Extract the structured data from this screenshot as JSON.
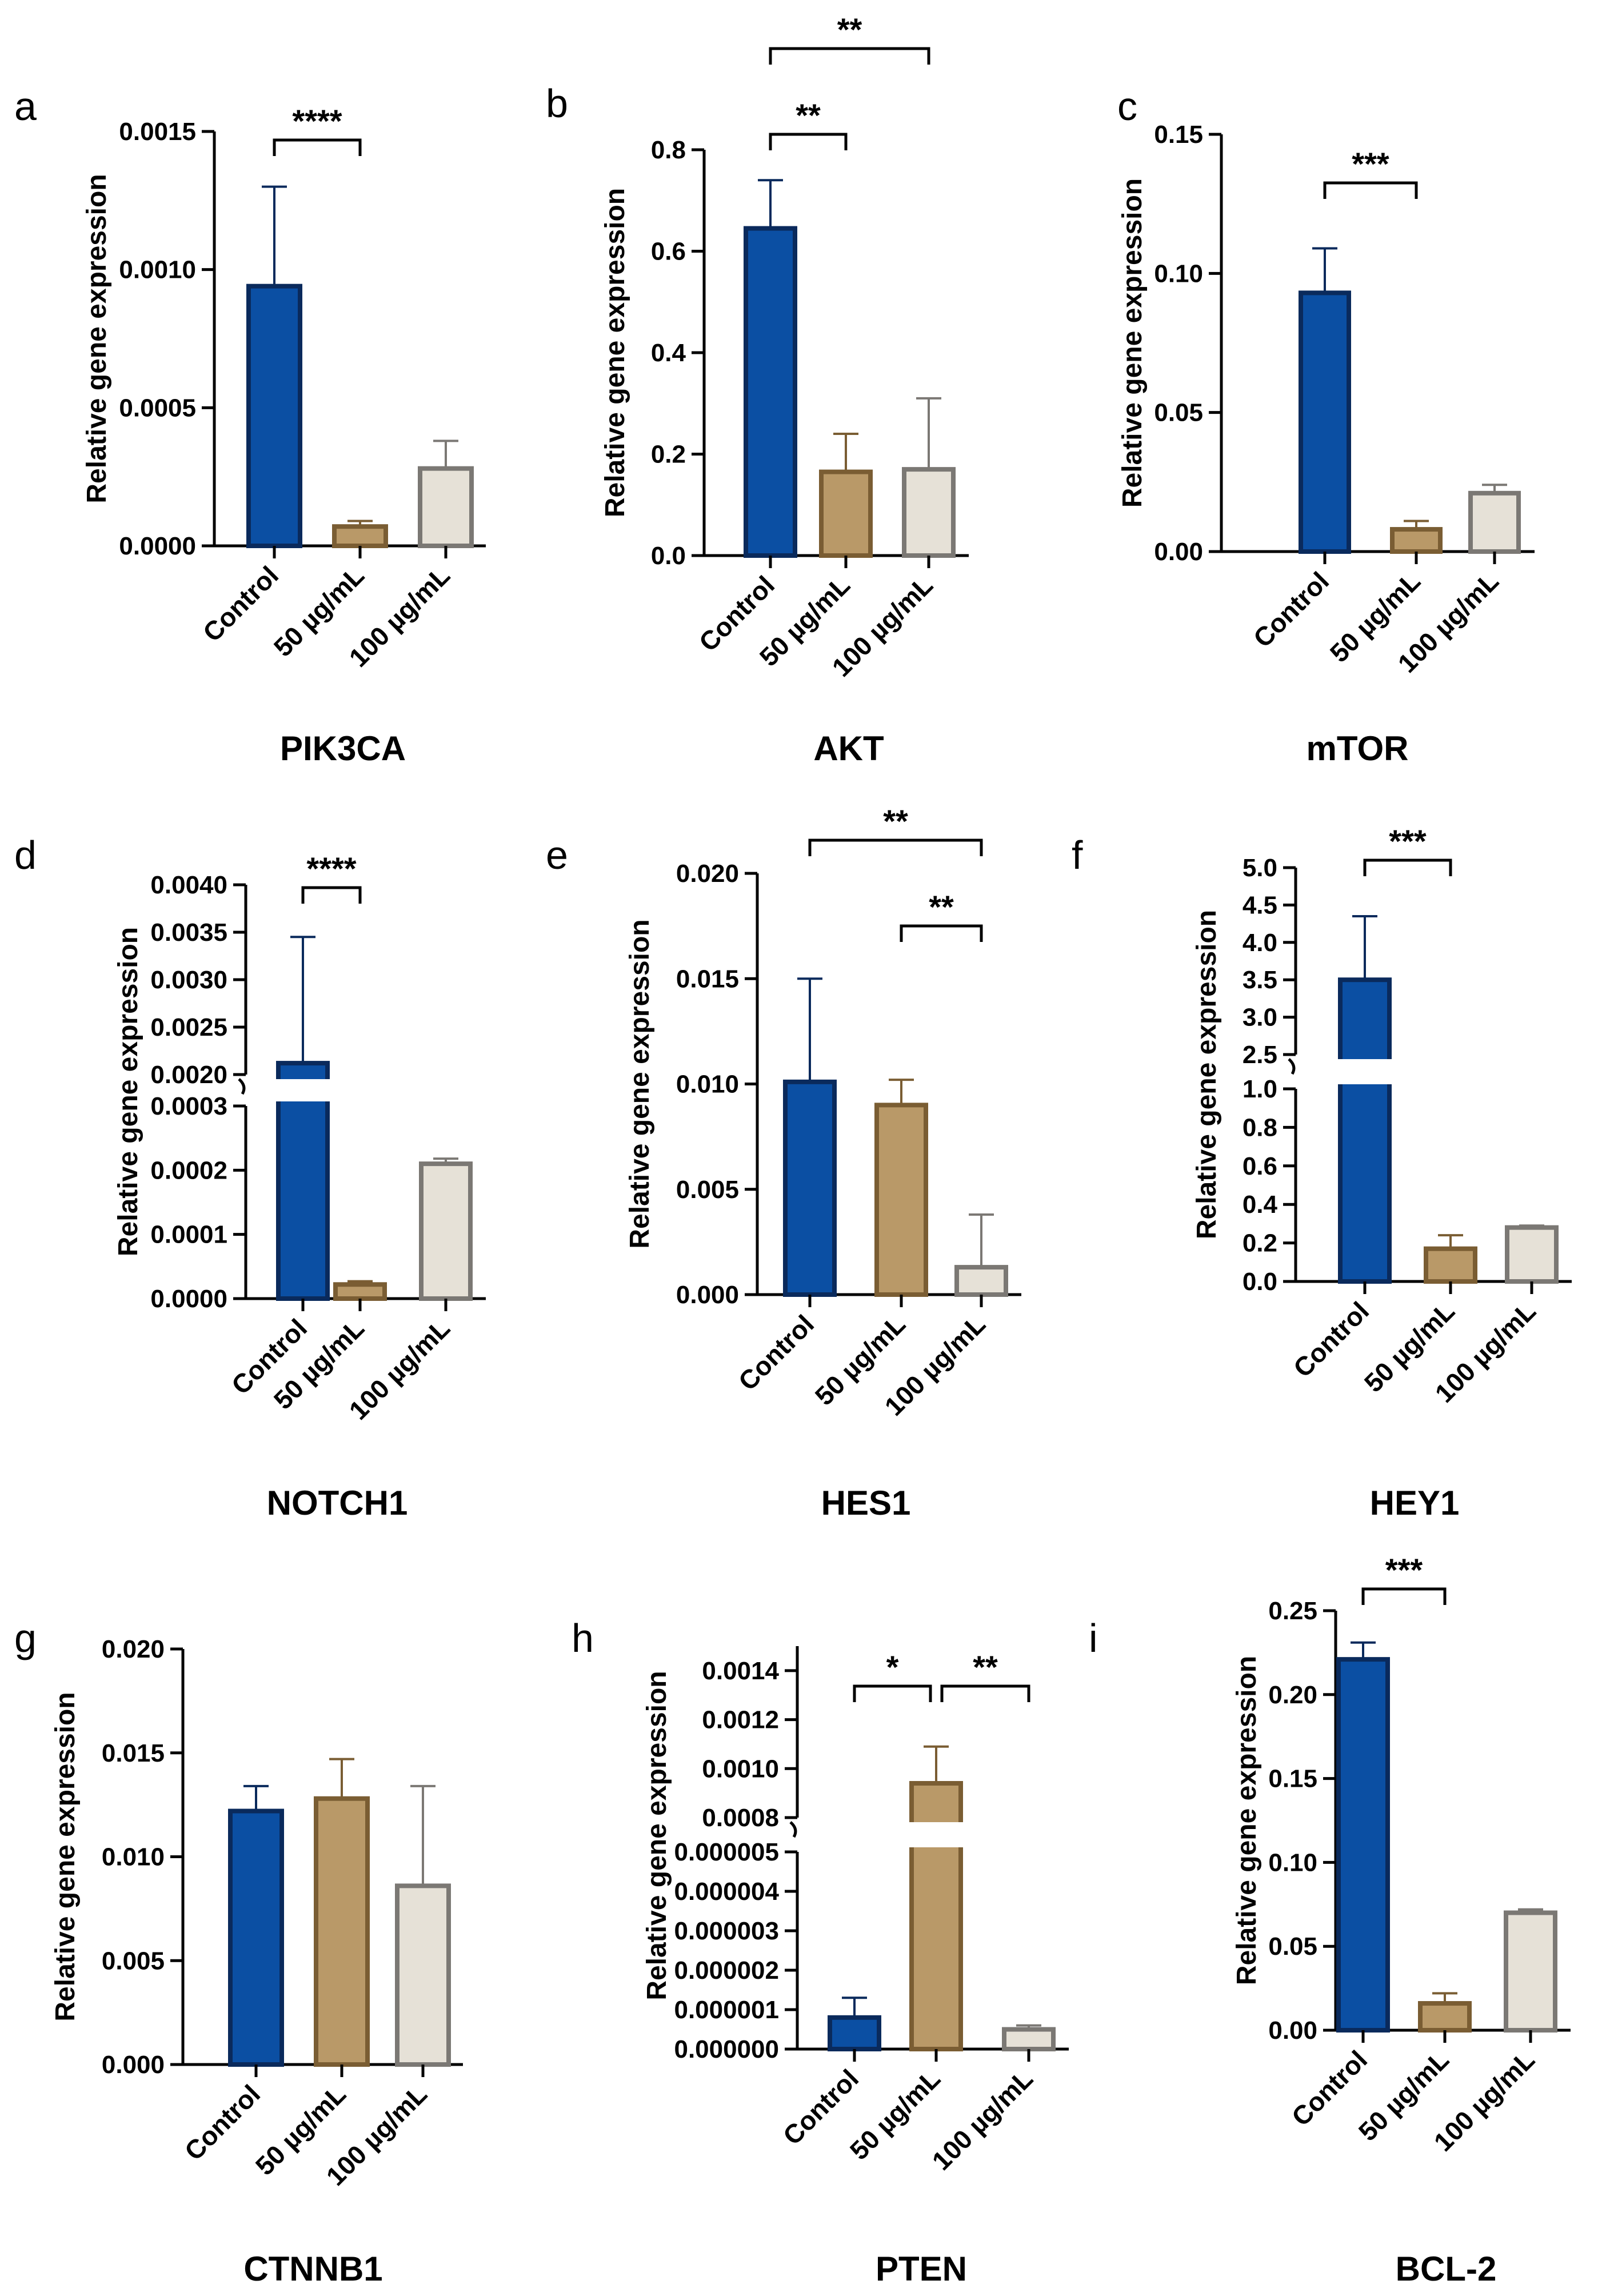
{
  "chart_data": [
    {
      "type": "bar",
      "panel": "a",
      "title": "PIK3CA",
      "ylabel": "Relative gene expression",
      "categories": [
        "Control",
        "50 µg/mL",
        "100 µg/mL"
      ],
      "values": [
        0.00094,
        7e-05,
        0.00028
      ],
      "errors": [
        0.00036,
        2e-05,
        0.0001
      ],
      "ylim": [
        0,
        0.0015
      ],
      "yticks": [
        0,
        0.0005,
        0.001,
        0.0015
      ],
      "ytick_labels": [
        "0.0000",
        "0.0005",
        "0.0010",
        "0.0015"
      ],
      "significance": [
        {
          "from": 0,
          "to": 1,
          "label": "****"
        }
      ]
    },
    {
      "type": "bar",
      "panel": "b",
      "title": "AKT",
      "ylabel": "Relative gene expression",
      "categories": [
        "Control",
        "50 µg/mL",
        "100 µg/mL"
      ],
      "values": [
        0.645,
        0.165,
        0.17
      ],
      "errors": [
        0.095,
        0.075,
        0.14
      ],
      "ylim": [
        0,
        0.8
      ],
      "yticks": [
        0,
        0.2,
        0.4,
        0.6,
        0.8
      ],
      "ytick_labels": [
        "0.0",
        "0.2",
        "0.4",
        "0.6",
        "0.8"
      ],
      "significance": [
        {
          "from": 0,
          "to": 1,
          "label": "**"
        },
        {
          "from": 0,
          "to": 2,
          "label": "**"
        }
      ]
    },
    {
      "type": "bar",
      "panel": "c",
      "title": "mTOR",
      "ylabel": "Relative gene expression",
      "categories": [
        "Control",
        "50 µg/mL",
        "100 µg/mL"
      ],
      "values": [
        0.093,
        0.008,
        0.021
      ],
      "errors": [
        0.016,
        0.003,
        0.003
      ],
      "ylim": [
        0,
        0.15
      ],
      "yticks": [
        0,
        0.05,
        0.1,
        0.15
      ],
      "ytick_labels": [
        "0.00",
        "0.05",
        "0.10",
        "0.15"
      ],
      "significance": [
        {
          "from": 0,
          "to": 1,
          "label": "***"
        }
      ]
    },
    {
      "type": "bar",
      "panel": "d",
      "title": "NOTCH1",
      "ylabel": "Relative gene expression",
      "categories": [
        "Control",
        "50 µg/mL",
        "100 µg/mL"
      ],
      "values": [
        0.00212,
        2.2e-05,
        0.00021
      ],
      "errors": [
        0.00133,
        5e-06,
        8e-06
      ],
      "broken_axis": true,
      "ylim_lower": [
        0,
        0.0003
      ],
      "ylim_upper": [
        0.002,
        0.004
      ],
      "yticks": [
        0,
        0.0001,
        0.0002,
        0.0003,
        0.002,
        0.0025,
        0.003,
        0.0035,
        0.004
      ],
      "ytick_labels": [
        "0.0000",
        "0.0001",
        "0.0002",
        "0.0003",
        "0.0020",
        "0.0025",
        "0.0030",
        "0.0035",
        "0.0040"
      ],
      "significance": [
        {
          "from": 0,
          "to": 1,
          "label": "****"
        }
      ]
    },
    {
      "type": "bar",
      "panel": "e",
      "title": "HES1",
      "ylabel": "Relative gene expression",
      "categories": [
        "Control",
        "50 µg/mL",
        "100 µg/mL"
      ],
      "values": [
        0.0101,
        0.009,
        0.0013
      ],
      "errors": [
        0.0049,
        0.0012,
        0.0025
      ],
      "ylim": [
        0,
        0.02
      ],
      "yticks": [
        0,
        0.005,
        0.01,
        0.015,
        0.02
      ],
      "ytick_labels": [
        "0.000",
        "0.005",
        "0.010",
        "0.015",
        "0.020"
      ],
      "significance": [
        {
          "from": 1,
          "to": 2,
          "label": "**"
        },
        {
          "from": 0,
          "to": 2,
          "label": "**"
        }
      ]
    },
    {
      "type": "bar",
      "panel": "f",
      "title": "HEY1",
      "ylabel": "Relative gene expression",
      "categories": [
        "Control",
        "50 µg/mL",
        "100 µg/mL"
      ],
      "values": [
        3.5,
        0.17,
        0.28
      ],
      "errors": [
        0.85,
        0.07,
        0.01
      ],
      "broken_axis": true,
      "ylim_lower": [
        0,
        1.0
      ],
      "ylim_upper": [
        2.5,
        5.0
      ],
      "yticks": [
        0,
        0.2,
        0.4,
        0.6,
        0.8,
        1.0,
        2.5,
        3.0,
        3.5,
        4.0,
        4.5,
        5.0
      ],
      "ytick_labels": [
        "0.0",
        "0.2",
        "0.4",
        "0.6",
        "0.8",
        "1.0",
        "2.5",
        "3.0",
        "3.5",
        "4.0",
        "4.5",
        "5.0"
      ],
      "significance": [
        {
          "from": 0,
          "to": 1,
          "label": "***"
        }
      ]
    },
    {
      "type": "bar",
      "panel": "g",
      "title": "CTNNB1",
      "ylabel": "Relative gene expression",
      "categories": [
        "Control",
        "50 µg/mL",
        "100 µg/mL"
      ],
      "values": [
        0.0122,
        0.0128,
        0.0086
      ],
      "errors": [
        0.0012,
        0.0019,
        0.0048
      ],
      "ylim": [
        0,
        0.02
      ],
      "yticks": [
        0,
        0.005,
        0.01,
        0.015,
        0.02
      ],
      "ytick_labels": [
        "0.000",
        "0.005",
        "0.010",
        "0.015",
        "0.020"
      ],
      "significance": []
    },
    {
      "type": "bar",
      "panel": "h",
      "title": "PTEN",
      "ylabel": "Relative gene expression",
      "categories": [
        "Control",
        "50 µg/mL",
        "100 µg/mL"
      ],
      "values": [
        8e-07,
        0.00094,
        5e-07
      ],
      "errors": [
        5e-07,
        0.00015,
        1e-07
      ],
      "broken_axis": true,
      "ylim_lower": [
        0,
        5e-06
      ],
      "ylim_upper": [
        0.0008,
        0.0015
      ],
      "yticks": [
        0,
        1e-06,
        2e-06,
        3e-06,
        4e-06,
        5e-06,
        0.0008,
        0.001,
        0.0012,
        0.0014
      ],
      "ytick_labels": [
        "0.000000",
        "0.000001",
        "0.000002",
        "0.000003",
        "0.000004",
        "0.000005",
        "0.0008",
        "0.0010",
        "0.0012",
        "0.0014"
      ],
      "significance": [
        {
          "from": 0,
          "to": 1,
          "label": "*"
        },
        {
          "from": 1,
          "to": 2,
          "label": "**"
        }
      ]
    },
    {
      "type": "bar",
      "panel": "i",
      "title": "BCL-2",
      "ylabel": "Relative gene expression",
      "categories": [
        "Control",
        "50 µg/mL",
        "100 µg/mL"
      ],
      "values": [
        0.221,
        0.016,
        0.07
      ],
      "errors": [
        0.01,
        0.006,
        0.002
      ],
      "ylim": [
        0,
        0.25
      ],
      "yticks": [
        0,
        0.05,
        0.1,
        0.15,
        0.2,
        0.25
      ],
      "ytick_labels": [
        "0.00",
        "0.05",
        "0.10",
        "0.15",
        "0.20",
        "0.25"
      ],
      "significance": [
        {
          "from": 0,
          "to": 1,
          "label": "***"
        }
      ]
    }
  ],
  "colors": {
    "control_fill": "#0b4fa3",
    "control_stroke": "#0a2a5c",
    "dose50_fill": "#b99968",
    "dose50_stroke": "#7a5d33",
    "dose100_fill": "#e6e1d7",
    "dose100_stroke": "#7b7874",
    "axis": "#000000"
  }
}
